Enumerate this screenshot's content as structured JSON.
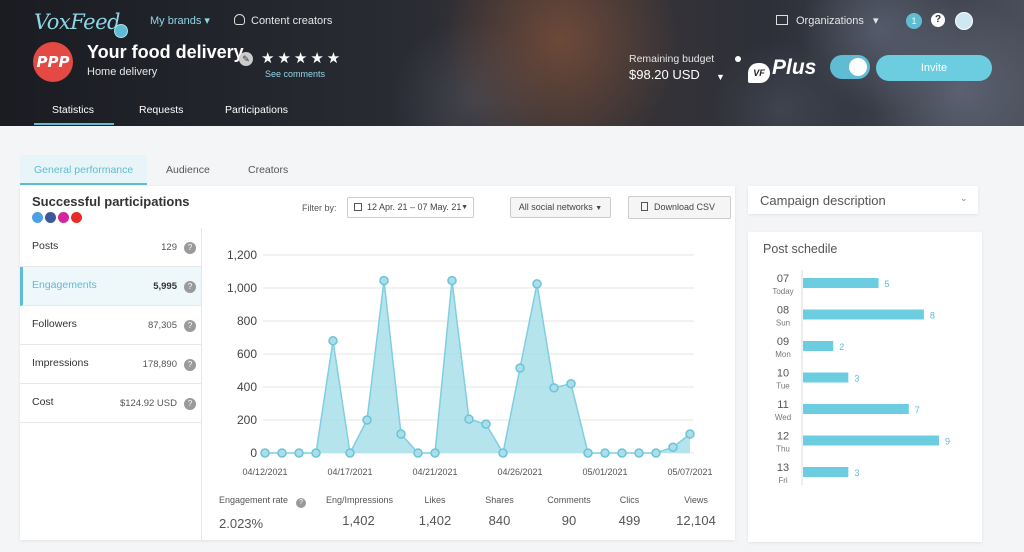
{
  "header": {
    "logo": "VoxFeed",
    "nav_brands": "My brands",
    "nav_creators": "Content creators",
    "brand_name": "Your food delivery",
    "brand_sub": "Home delivery",
    "avatar_text": "PPP",
    "stars": "★★★★★",
    "see_comments": "See comments",
    "tabs": [
      "Statistics",
      "Requests",
      "Participations"
    ],
    "organizations": "Organizations",
    "notifications": "1",
    "help": "?",
    "budget_label": "Remaining budget",
    "budget_value": "$98.20 USD",
    "vf_badge": "VF",
    "plus_label": "Plus",
    "invite": "Invite"
  },
  "subtabs": [
    "General performance",
    "Audience",
    "Creators"
  ],
  "participations": {
    "title": "Successful participations",
    "metrics": [
      {
        "label": "Posts",
        "value": "129"
      },
      {
        "label": "Engagements",
        "value": "5,995"
      },
      {
        "label": "Followers",
        "value": "87,305"
      },
      {
        "label": "Impressions",
        "value": "178,890"
      },
      {
        "label": "Cost",
        "value": "$124.92 USD"
      }
    ]
  },
  "filters": {
    "filter_by": "Filter by:",
    "date_range": "12 Apr. 21 – 07 May. 21",
    "networks": "All social networks",
    "download": "Download CSV"
  },
  "stats": [
    {
      "label": "Engagement rate",
      "value": "2.023%"
    },
    {
      "label": "Eng/Impressions",
      "value": "1,402"
    },
    {
      "label": "Likes",
      "value": "1,402"
    },
    {
      "label": "Shares",
      "value": "840"
    },
    {
      "label": "Comments",
      "value": "90"
    },
    {
      "label": "Clics",
      "value": "499"
    },
    {
      "label": "Views",
      "value": "12,104"
    }
  ],
  "campaign": {
    "title": "Campaign description"
  },
  "colors": {
    "accent": "#5fbcd3",
    "area": "#a9dfea",
    "brand_red": "#e44a43"
  },
  "chart_data": [
    {
      "type": "area",
      "title": "",
      "x_labels": [
        "04/12/2021",
        "04/17/2021",
        "04/21/2021",
        "04/26/2021",
        "05/01/2021",
        "05/07/2021"
      ],
      "y_ticks": [
        "0",
        "200",
        "400",
        "600",
        "800",
        "1,000",
        "1,200"
      ],
      "ylim": [
        0,
        1200
      ],
      "grid": true,
      "values": [
        0,
        0,
        0,
        0,
        680,
        0,
        200,
        1045,
        115,
        0,
        0,
        1045,
        205,
        175,
        0,
        515,
        1025,
        395,
        420,
        0,
        0,
        0,
        0,
        0,
        35,
        115
      ]
    },
    {
      "type": "bar",
      "title": "Post schedile",
      "orientation": "horizontal",
      "categories": [
        {
          "day": "07",
          "weekday": "Today"
        },
        {
          "day": "08",
          "weekday": "Sun"
        },
        {
          "day": "09",
          "weekday": "Mon"
        },
        {
          "day": "10",
          "weekday": "Tue"
        },
        {
          "day": "11",
          "weekday": "Wed"
        },
        {
          "day": "12",
          "weekday": "Thu"
        },
        {
          "day": "13",
          "weekday": "Fri"
        }
      ],
      "values": [
        5,
        8,
        2,
        3,
        7,
        9,
        3
      ]
    }
  ]
}
